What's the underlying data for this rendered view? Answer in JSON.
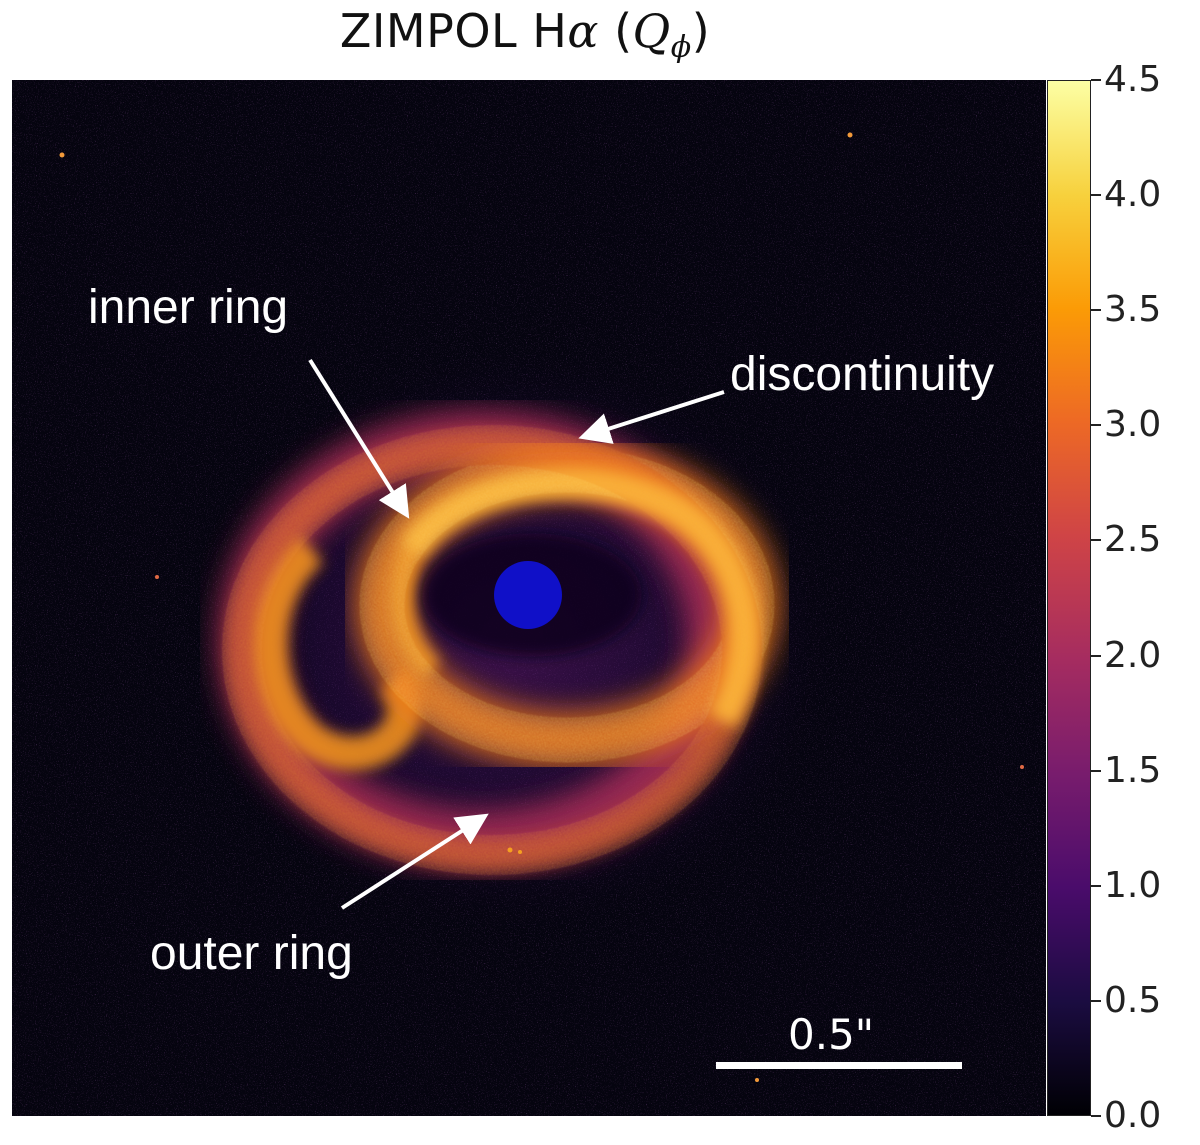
{
  "figure": {
    "title_prefix": "ZIMPOL H",
    "title_alpha": "α",
    "title_open": " (",
    "title_q": "Q",
    "title_sub": "ϕ",
    "title_close": ")"
  },
  "annotations": {
    "inner_ring": "inner ring",
    "discontinuity": "discontinuity",
    "outer_ring": "outer ring"
  },
  "scale_bar": {
    "label": "0.5\""
  },
  "colorbar": {
    "min": 0.0,
    "max": 4.5,
    "ticks": [
      "0.0",
      "0.5",
      "1.0",
      "1.5",
      "2.0",
      "2.5",
      "3.0",
      "3.5",
      "4.0",
      "4.5"
    ],
    "colormap": "inferno"
  },
  "colors": {
    "background": "#05040f",
    "ring_glow": "#f5a020",
    "coronagraph_mask": "#1010c8",
    "annotation_text": "#ffffff"
  }
}
